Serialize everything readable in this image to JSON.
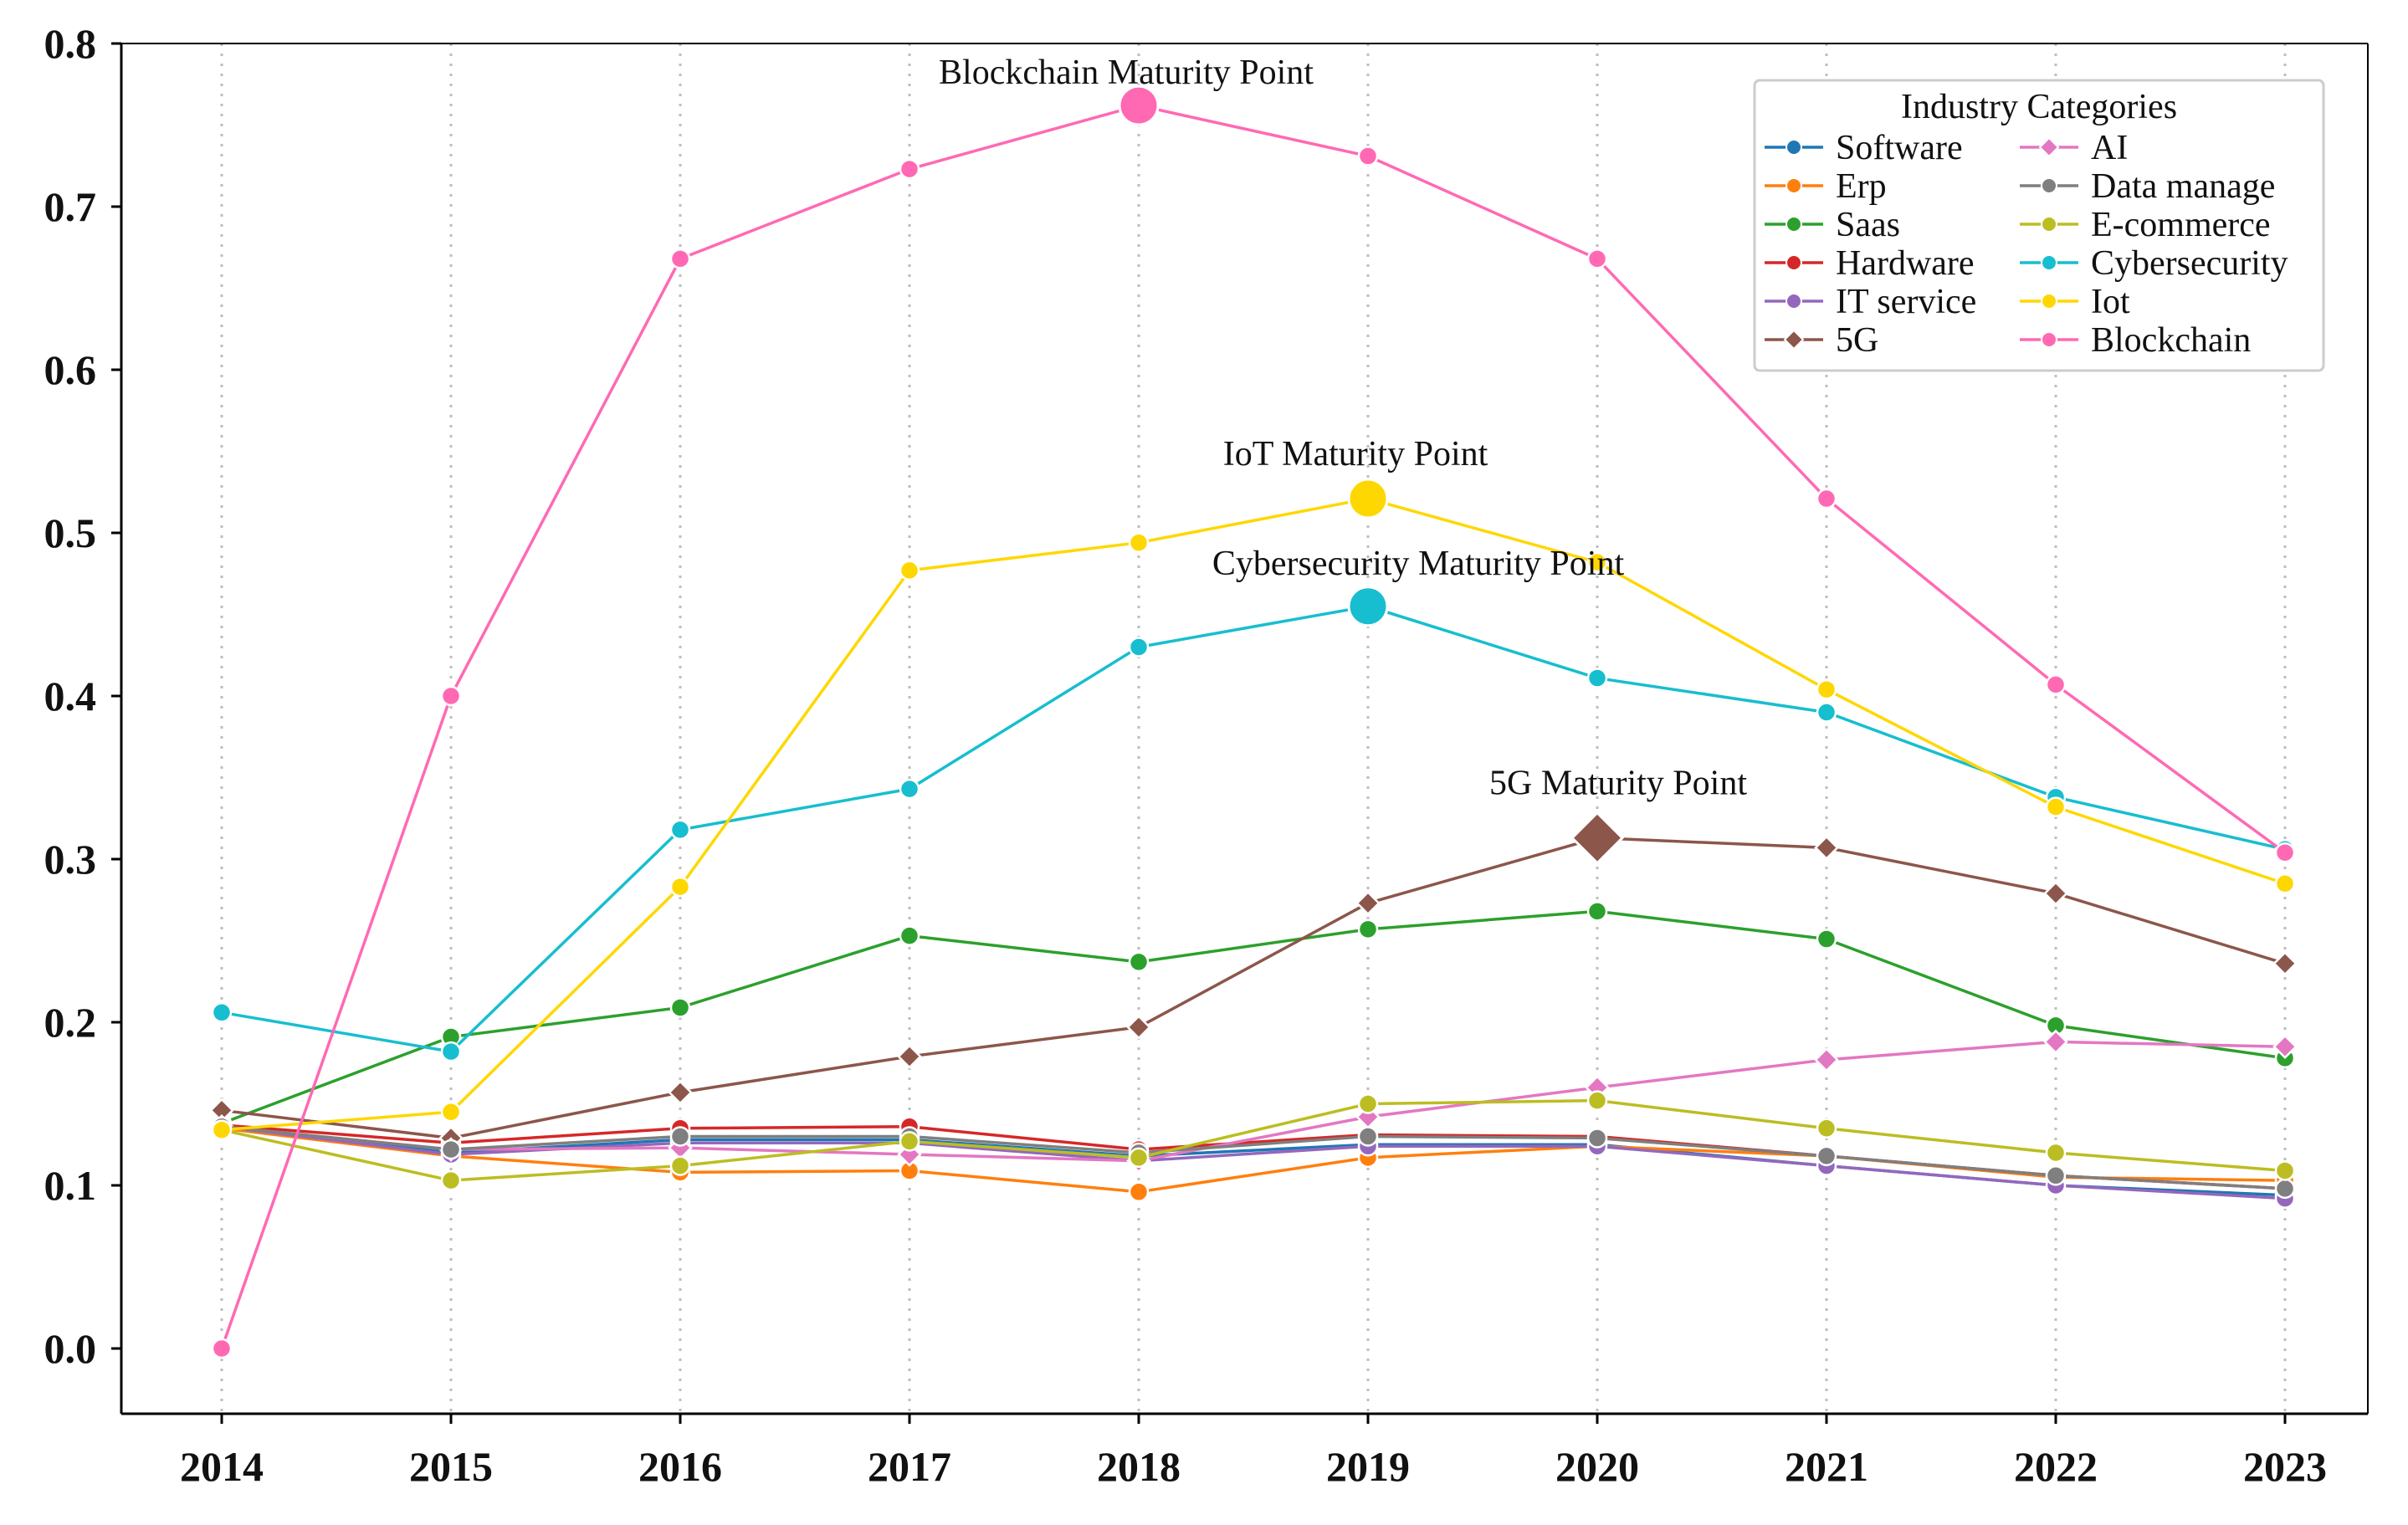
{
  "chart_data": {
    "type": "line",
    "x": [
      "2014",
      "2015",
      "2016",
      "2017",
      "2018",
      "2019",
      "2020",
      "2021",
      "2022",
      "2023"
    ],
    "ylim": [
      -0.04,
      0.8
    ],
    "yticks": [
      "0.0",
      "0.1",
      "0.2",
      "0.3",
      "0.4",
      "0.5",
      "0.6",
      "0.7",
      "0.8"
    ],
    "grid": "vertical dotted",
    "legend": {
      "title": "Industry Categories",
      "placement": "top-right",
      "columns": 2
    },
    "series": [
      {
        "name": "Software",
        "color": "#1f77b4",
        "marker": "circle",
        "values": [
          0.136,
          0.12,
          0.128,
          0.128,
          0.118,
          0.125,
          0.125,
          0.112,
          0.1,
          0.094
        ]
      },
      {
        "name": "Erp",
        "color": "#ff7f0e",
        "marker": "circle",
        "values": [
          0.135,
          0.118,
          0.108,
          0.109,
          0.096,
          0.117,
          0.124,
          0.118,
          0.105,
          0.103
        ]
      },
      {
        "name": "Saas",
        "color": "#2ca02c",
        "marker": "circle",
        "values": [
          0.138,
          0.191,
          0.209,
          0.253,
          0.237,
          0.257,
          0.268,
          0.251,
          0.198,
          0.178
        ]
      },
      {
        "name": "Hardware",
        "color": "#d62728",
        "marker": "circle",
        "values": [
          0.137,
          0.126,
          0.135,
          0.136,
          0.122,
          0.131,
          0.13,
          0.118,
          0.106,
          0.098
        ]
      },
      {
        "name": "IT service",
        "color": "#9467bd",
        "marker": "circle",
        "values": [
          0.136,
          0.119,
          0.126,
          0.126,
          0.115,
          0.124,
          0.124,
          0.112,
          0.1,
          0.092
        ]
      },
      {
        "name": "5G",
        "color": "#8c564b",
        "marker": "diamond",
        "values": [
          0.146,
          0.129,
          0.157,
          0.179,
          0.197,
          0.273,
          0.313,
          0.307,
          0.279,
          0.236
        ]
      },
      {
        "name": "AI",
        "color": "#e377c2",
        "marker": "diamond",
        "values": [
          0.136,
          0.122,
          0.123,
          0.119,
          0.115,
          0.142,
          0.16,
          0.177,
          0.188,
          0.185
        ]
      },
      {
        "name": "Data manage",
        "color": "#7f7f7f",
        "marker": "circle",
        "values": [
          0.136,
          0.122,
          0.13,
          0.13,
          0.12,
          0.13,
          0.129,
          0.118,
          0.106,
          0.098
        ]
      },
      {
        "name": "E-commerce",
        "color": "#bcbd22",
        "marker": "circle",
        "values": [
          0.134,
          0.103,
          0.112,
          0.127,
          0.117,
          0.15,
          0.152,
          0.135,
          0.12,
          0.109
        ]
      },
      {
        "name": "Cybersecurity",
        "color": "#17becf",
        "marker": "circle",
        "values": [
          0.206,
          0.182,
          0.318,
          0.343,
          0.43,
          0.455,
          0.411,
          0.39,
          0.338,
          0.306
        ]
      },
      {
        "name": "Iot",
        "color": "#ffd700",
        "marker": "circle",
        "values": [
          0.134,
          0.145,
          0.283,
          0.477,
          0.494,
          0.521,
          0.482,
          0.404,
          0.332,
          0.285
        ]
      },
      {
        "name": "Blockchain",
        "color": "#ff69b4",
        "marker": "circle",
        "values": [
          0.0,
          0.4,
          0.668,
          0.723,
          0.762,
          0.731,
          0.668,
          0.521,
          0.407,
          0.304
        ]
      }
    ],
    "annotations": [
      {
        "text": "Blockchain Maturity Point",
        "series": "Blockchain",
        "x": "2018",
        "y": 0.762
      },
      {
        "text": "IoT Maturity Point",
        "series": "Iot",
        "x": "2019",
        "y": 0.521
      },
      {
        "text": "Cybersecurity Maturity Point",
        "series": "Cybersecurity",
        "x": "2019",
        "y": 0.455
      },
      {
        "text": "5G Maturity Point",
        "series": "5G",
        "x": "2020",
        "y": 0.313
      }
    ]
  }
}
